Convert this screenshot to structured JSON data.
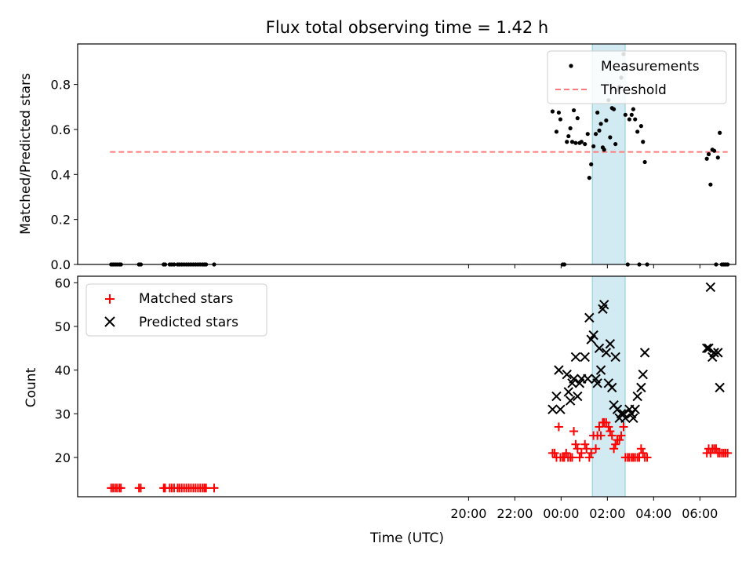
{
  "chart_data": [
    {
      "type": "scatter",
      "title": "Flux total observing time = 1.42 h",
      "ylabel": "Matched/Predicted stars",
      "xlabel": "",
      "ylim": [
        0,
        0.98
      ],
      "y_ticks": [
        0.0,
        0.2,
        0.4,
        0.6,
        0.8
      ],
      "y_tick_labels": [
        "0.0",
        "0.2",
        "0.4",
        "0.6",
        "0.8"
      ],
      "x_unit": "hours (relative to 00:00 UTC)",
      "legend_position": "top-right",
      "highlight_span": [
        1.35,
        2.77
      ],
      "series": [
        {
          "name": "Measurements",
          "style": "dot",
          "color": "#000000",
          "points": [
            [
              -19.45,
              0
            ],
            [
              -19.37,
              0
            ],
            [
              -19.28,
              0
            ],
            [
              -19.2,
              0
            ],
            [
              -19.1,
              0
            ],
            [
              -19.03,
              0
            ],
            [
              -18.25,
              0
            ],
            [
              -18.17,
              0
            ],
            [
              -17.18,
              0
            ],
            [
              -17.12,
              0
            ],
            [
              -16.92,
              0
            ],
            [
              -16.83,
              0
            ],
            [
              -16.73,
              0
            ],
            [
              -16.58,
              0
            ],
            [
              -16.5,
              0
            ],
            [
              -16.4,
              0
            ],
            [
              -16.3,
              0
            ],
            [
              -16.2,
              0
            ],
            [
              -16.1,
              0
            ],
            [
              -16.0,
              0
            ],
            [
              -15.9,
              0
            ],
            [
              -15.8,
              0
            ],
            [
              -15.7,
              0
            ],
            [
              -15.6,
              0
            ],
            [
              -15.5,
              0
            ],
            [
              -15.42,
              0
            ],
            [
              -15.35,
              0
            ],
            [
              -15.0,
              0
            ],
            [
              -0.37,
              0.68
            ],
            [
              -0.2,
              0.59
            ],
            [
              -0.1,
              0.675
            ],
            [
              -0.03,
              0.645
            ],
            [
              0.07,
              0
            ],
            [
              0.14,
              0
            ],
            [
              0.25,
              0.545
            ],
            [
              0.32,
              0.57
            ],
            [
              0.4,
              0.605
            ],
            [
              0.48,
              0.545
            ],
            [
              0.55,
              0.685
            ],
            [
              0.63,
              0.54
            ],
            [
              0.71,
              0.65
            ],
            [
              0.8,
              0.54
            ],
            [
              0.88,
              0.545
            ],
            [
              1.03,
              0.535
            ],
            [
              1.15,
              0.58
            ],
            [
              1.22,
              0.385
            ],
            [
              1.3,
              0.445
            ],
            [
              1.4,
              0.525
            ],
            [
              1.5,
              0.58
            ],
            [
              1.57,
              0.675
            ],
            [
              1.65,
              0.595
            ],
            [
              1.72,
              0.625
            ],
            [
              1.8,
              0.52
            ],
            [
              1.86,
              0.51
            ],
            [
              1.95,
              0.64
            ],
            [
              2.05,
              0.73
            ],
            [
              2.12,
              0.565
            ],
            [
              2.2,
              0.695
            ],
            [
              2.28,
              0.69
            ],
            [
              2.35,
              0.535
            ],
            [
              2.43,
              0.775
            ],
            [
              2.52,
              0.79
            ],
            [
              2.6,
              0.83
            ],
            [
              2.7,
              0.935
            ],
            [
              2.78,
              0.665
            ],
            [
              2.88,
              0
            ],
            [
              2.95,
              0.645
            ],
            [
              3.05,
              0.665
            ],
            [
              3.12,
              0.69
            ],
            [
              3.2,
              0.645
            ],
            [
              3.3,
              0.59
            ],
            [
              3.38,
              0
            ],
            [
              3.46,
              0.615
            ],
            [
              3.54,
              0.545
            ],
            [
              3.62,
              0.455
            ],
            [
              3.72,
              0
            ],
            [
              6.3,
              0.47
            ],
            [
              6.38,
              0.49
            ],
            [
              6.46,
              0.355
            ],
            [
              6.54,
              0.51
            ],
            [
              6.62,
              0.505
            ],
            [
              6.7,
              0
            ],
            [
              6.78,
              0.475
            ],
            [
              6.86,
              0.585
            ],
            [
              6.95,
              0
            ],
            [
              7.03,
              0
            ],
            [
              7.11,
              0
            ],
            [
              7.2,
              0
            ]
          ]
        },
        {
          "name": "Threshold",
          "style": "dashed-line",
          "color": "#ff7b7b",
          "points": [
            [
              -19.5,
              0.5
            ],
            [
              7.2,
              0.5
            ]
          ]
        }
      ]
    },
    {
      "type": "scatter",
      "title": "",
      "ylabel": "Count",
      "xlabel": "Time (UTC)",
      "ylim": [
        11,
        61.5
      ],
      "y_ticks": [
        20,
        30,
        40,
        50,
        60
      ],
      "y_tick_labels": [
        "20",
        "30",
        "40",
        "50",
        "60"
      ],
      "xlim": [
        -20.9,
        7.55
      ],
      "x_ticks": [
        -4,
        -2,
        0,
        2,
        4,
        6
      ],
      "x_tick_labels": [
        "20:00",
        "22:00",
        "00:00",
        "02:00",
        "04:00",
        "06:00"
      ],
      "x_unit": "hours (relative to 00:00 UTC)",
      "legend_position": "top-left",
      "highlight_span": [
        1.35,
        2.77
      ],
      "series": [
        {
          "name": "Matched stars",
          "style": "plus",
          "color": "#ff0000",
          "points": [
            [
              -19.45,
              13
            ],
            [
              -19.37,
              13
            ],
            [
              -19.28,
              13
            ],
            [
              -19.2,
              13
            ],
            [
              -19.1,
              13
            ],
            [
              -19.03,
              13
            ],
            [
              -18.25,
              13
            ],
            [
              -18.17,
              13
            ],
            [
              -17.18,
              13
            ],
            [
              -17.12,
              13
            ],
            [
              -16.92,
              13
            ],
            [
              -16.83,
              13
            ],
            [
              -16.73,
              13
            ],
            [
              -16.58,
              13
            ],
            [
              -16.5,
              13
            ],
            [
              -16.4,
              13
            ],
            [
              -16.3,
              13
            ],
            [
              -16.2,
              13
            ],
            [
              -16.1,
              13
            ],
            [
              -16.0,
              13
            ],
            [
              -15.9,
              13
            ],
            [
              -15.8,
              13
            ],
            [
              -15.7,
              13
            ],
            [
              -15.6,
              13
            ],
            [
              -15.5,
              13
            ],
            [
              -15.42,
              13
            ],
            [
              -15.35,
              13
            ],
            [
              -15.0,
              13
            ],
            [
              -0.37,
              21
            ],
            [
              -0.28,
              21
            ],
            [
              -0.2,
              20
            ],
            [
              -0.1,
              27
            ],
            [
              -0.03,
              20
            ],
            [
              0.07,
              20
            ],
            [
              0.14,
              20
            ],
            [
              0.22,
              21
            ],
            [
              0.3,
              20
            ],
            [
              0.4,
              20
            ],
            [
              0.48,
              20
            ],
            [
              0.55,
              26
            ],
            [
              0.63,
              23
            ],
            [
              0.71,
              22
            ],
            [
              0.8,
              20
            ],
            [
              0.88,
              21
            ],
            [
              1.03,
              23
            ],
            [
              1.1,
              22
            ],
            [
              1.22,
              20
            ],
            [
              1.3,
              21
            ],
            [
              1.4,
              25
            ],
            [
              1.5,
              22
            ],
            [
              1.57,
              25
            ],
            [
              1.65,
              27
            ],
            [
              1.72,
              25
            ],
            [
              1.8,
              28
            ],
            [
              1.86,
              28
            ],
            [
              1.95,
              28
            ],
            [
              2.05,
              27
            ],
            [
              2.12,
              26
            ],
            [
              2.2,
              25
            ],
            [
              2.28,
              22
            ],
            [
              2.35,
              23
            ],
            [
              2.43,
              24
            ],
            [
              2.52,
              24
            ],
            [
              2.6,
              25
            ],
            [
              2.7,
              27
            ],
            [
              2.78,
              20
            ],
            [
              2.88,
              20
            ],
            [
              2.95,
              20
            ],
            [
              3.05,
              20
            ],
            [
              3.12,
              20
            ],
            [
              3.2,
              20
            ],
            [
              3.3,
              20
            ],
            [
              3.38,
              20
            ],
            [
              3.46,
              22
            ],
            [
              3.54,
              21
            ],
            [
              3.62,
              20
            ],
            [
              3.72,
              20
            ],
            [
              6.3,
              21
            ],
            [
              6.38,
              22
            ],
            [
              6.46,
              21
            ],
            [
              6.54,
              22
            ],
            [
              6.62,
              22
            ],
            [
              6.7,
              22
            ],
            [
              6.78,
              21
            ],
            [
              6.86,
              21
            ],
            [
              6.95,
              21
            ],
            [
              7.03,
              21
            ],
            [
              7.11,
              21
            ],
            [
              7.2,
              21
            ]
          ]
        },
        {
          "name": "Predicted stars",
          "style": "x",
          "color": "#000000",
          "points": [
            [
              -0.37,
              31
            ],
            [
              -0.2,
              34
            ],
            [
              -0.1,
              40
            ],
            [
              -0.03,
              31
            ],
            [
              0.25,
              39
            ],
            [
              0.32,
              35
            ],
            [
              0.4,
              33
            ],
            [
              0.48,
              37
            ],
            [
              0.55,
              38
            ],
            [
              0.63,
              43
            ],
            [
              0.71,
              34
            ],
            [
              0.8,
              37
            ],
            [
              0.88,
              38
            ],
            [
              1.03,
              43
            ],
            [
              1.15,
              38
            ],
            [
              1.22,
              52
            ],
            [
              1.3,
              47
            ],
            [
              1.4,
              48
            ],
            [
              1.5,
              38
            ],
            [
              1.57,
              37
            ],
            [
              1.65,
              45
            ],
            [
              1.72,
              40
            ],
            [
              1.8,
              54
            ],
            [
              1.86,
              55
            ],
            [
              1.95,
              44
            ],
            [
              2.05,
              37
            ],
            [
              2.12,
              46
            ],
            [
              2.2,
              36
            ],
            [
              2.28,
              32
            ],
            [
              2.35,
              43
            ],
            [
              2.43,
              31
            ],
            [
              2.52,
              29
            ],
            [
              2.6,
              30
            ],
            [
              2.7,
              30
            ],
            [
              2.78,
              29
            ],
            [
              2.95,
              31
            ],
            [
              3.05,
              30
            ],
            [
              3.12,
              29
            ],
            [
              3.2,
              31
            ],
            [
              3.3,
              34
            ],
            [
              3.46,
              36
            ],
            [
              3.54,
              39
            ],
            [
              3.62,
              44
            ],
            [
              6.3,
              45
            ],
            [
              6.38,
              45
            ],
            [
              6.46,
              59
            ],
            [
              6.54,
              43
            ],
            [
              6.62,
              44
            ],
            [
              6.78,
              44
            ],
            [
              6.86,
              36
            ]
          ]
        }
      ]
    }
  ]
}
